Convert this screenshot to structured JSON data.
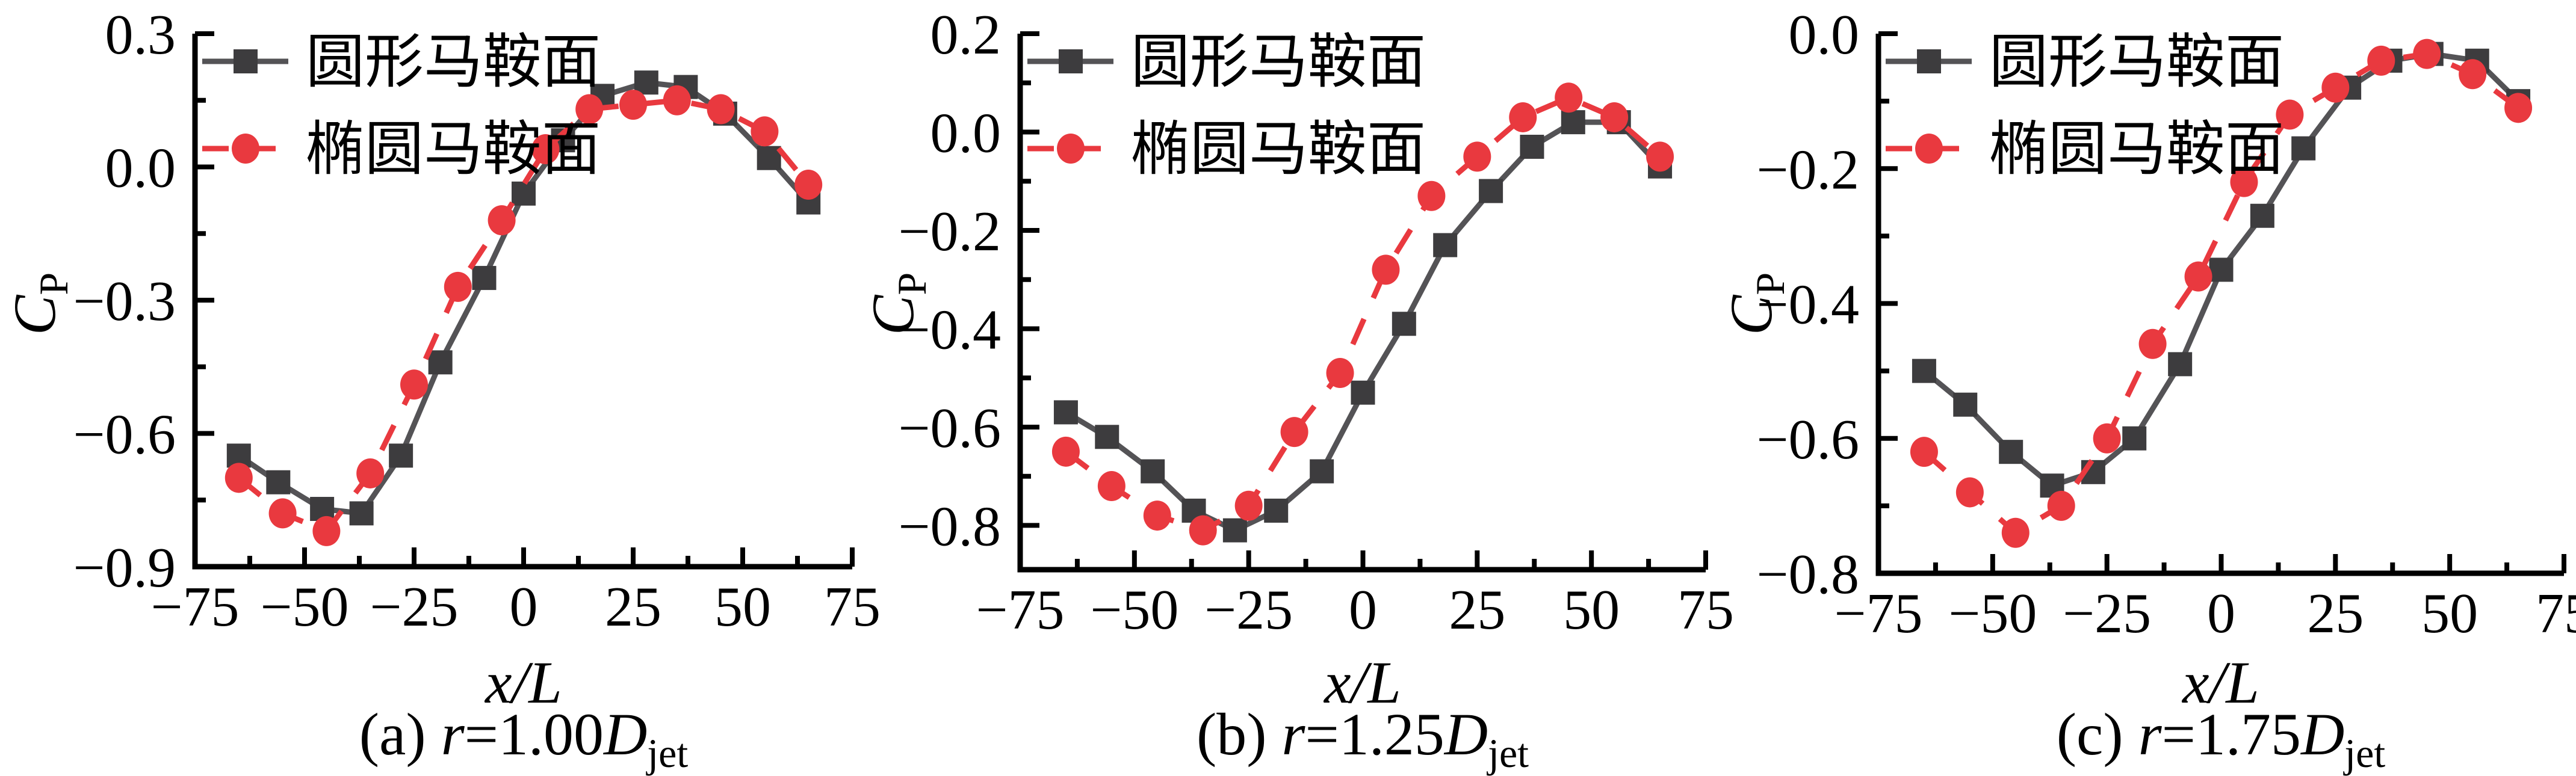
{
  "chart_data": [
    {
      "type": "line",
      "panel": "a",
      "caption": {
        "index": "(a) ",
        "var1": "r",
        "eq": "=1.00",
        "var2": "D",
        "sub": "jet"
      },
      "caption_text": "(a) r=1.00Djet",
      "xlabel": "x/L",
      "ylabel": {
        "main": "C",
        "sub": "P"
      },
      "xlim": [
        -75,
        75
      ],
      "ylim": [
        -0.9,
        0.3
      ],
      "xticks": [
        -75,
        -50,
        -25,
        0,
        25,
        50,
        75
      ],
      "xminor": [
        -62.5,
        -37.5,
        -12.5,
        12.5,
        37.5,
        62.5
      ],
      "yticks": [
        0.3,
        0.0,
        -0.3,
        -0.6,
        -0.9
      ],
      "yminor": [
        0.15,
        -0.15,
        -0.45,
        -0.75
      ],
      "grid": false,
      "legend_position": "top-left",
      "series": [
        {
          "name": "圆形马鞍面",
          "marker": "square",
          "line_style": "solid",
          "marker_color": "#3d3c3e",
          "line_color": "#545356",
          "x": [
            -65,
            -56,
            -46,
            -37,
            -28,
            -19,
            -9,
            0,
            9,
            18,
            28,
            37,
            46,
            56,
            65
          ],
          "y": [
            -0.65,
            -0.71,
            -0.77,
            -0.78,
            -0.65,
            -0.44,
            -0.25,
            -0.06,
            0.06,
            0.16,
            0.19,
            0.18,
            0.12,
            0.02,
            -0.08
          ]
        },
        {
          "name": "椭圆马鞍面",
          "marker": "circle",
          "line_style": "dashed",
          "marker_color": "#e9393f",
          "line_color": "#e9393f",
          "x": [
            -65,
            -55,
            -45,
            -35,
            -25,
            -15,
            -5,
            5,
            15,
            25,
            35,
            45,
            55,
            65
          ],
          "y": [
            -0.7,
            -0.78,
            -0.82,
            -0.69,
            -0.49,
            -0.27,
            -0.12,
            0.04,
            0.13,
            0.14,
            0.15,
            0.13,
            0.08,
            -0.04
          ]
        }
      ]
    },
    {
      "type": "line",
      "panel": "b",
      "caption": {
        "index": "(b) ",
        "var1": "r",
        "eq": "=1.25",
        "var2": "D",
        "sub": "jet"
      },
      "caption_text": "(b) r=1.25Djet",
      "xlabel": "x/L",
      "ylabel": {
        "main": "C",
        "sub": "P"
      },
      "xlim": [
        -75,
        75
      ],
      "ylim": [
        -0.89,
        0.2
      ],
      "xticks": [
        -75,
        -50,
        -25,
        0,
        25,
        50,
        75
      ],
      "xminor": [
        -62.5,
        -37.5,
        -12.5,
        12.5,
        37.5,
        62.5
      ],
      "yticks": [
        0.2,
        0.0,
        -0.2,
        -0.4,
        -0.6,
        -0.8
      ],
      "yminor": [
        0.1,
        -0.1,
        -0.3,
        -0.5,
        -0.7
      ],
      "grid": false,
      "legend_position": "top-left",
      "series": [
        {
          "name": "圆形马鞍面",
          "marker": "square",
          "line_style": "solid",
          "marker_color": "#3d3c3e",
          "line_color": "#545356",
          "x": [
            -65,
            -56,
            -46,
            -37,
            -28,
            -19,
            -9,
            0,
            9,
            18,
            28,
            37,
            46,
            56,
            65
          ],
          "y": [
            -0.57,
            -0.62,
            -0.69,
            -0.77,
            -0.81,
            -0.77,
            -0.69,
            -0.53,
            -0.39,
            -0.23,
            -0.12,
            -0.03,
            0.02,
            0.02,
            -0.07
          ]
        },
        {
          "name": "椭圆马鞍面",
          "marker": "circle",
          "line_style": "dashed",
          "marker_color": "#e9393f",
          "line_color": "#e9393f",
          "x": [
            -65,
            -55,
            -45,
            -35,
            -25,
            -15,
            -5,
            5,
            15,
            25,
            35,
            45,
            55,
            65
          ],
          "y": [
            -0.65,
            -0.72,
            -0.78,
            -0.81,
            -0.76,
            -0.61,
            -0.49,
            -0.28,
            -0.13,
            -0.05,
            0.03,
            0.07,
            0.03,
            -0.05
          ]
        }
      ]
    },
    {
      "type": "line",
      "panel": "c",
      "caption": {
        "index": "(c) ",
        "var1": "r",
        "eq": "=1.75",
        "var2": "D",
        "sub": "jet"
      },
      "caption_text": "(c) r=1.75Djet",
      "xlabel": "x/L",
      "ylabel": {
        "main": "C",
        "sub": "P"
      },
      "xlim": [
        -75,
        75
      ],
      "ylim": [
        -0.8,
        0.0
      ],
      "xticks": [
        -75,
        -50,
        -25,
        0,
        25,
        50,
        75
      ],
      "xminor": [
        -62.5,
        -37.5,
        -12.5,
        12.5,
        37.5,
        62.5
      ],
      "yticks": [
        0.0,
        -0.2,
        -0.4,
        -0.6,
        -0.8
      ],
      "yminor": [
        -0.1,
        -0.3,
        -0.5,
        -0.7
      ],
      "grid": false,
      "legend_position": "top-left",
      "series": [
        {
          "name": "圆形马鞍面",
          "marker": "square",
          "line_style": "solid",
          "marker_color": "#3d3c3e",
          "line_color": "#545356",
          "x": [
            -65,
            -56,
            -46,
            -37,
            -28,
            -19,
            -9,
            0,
            9,
            18,
            28,
            37,
            46,
            56,
            65
          ],
          "y": [
            -0.5,
            -0.55,
            -0.62,
            -0.67,
            -0.65,
            -0.6,
            -0.49,
            -0.35,
            -0.27,
            -0.17,
            -0.08,
            -0.04,
            -0.03,
            -0.04,
            -0.1
          ]
        },
        {
          "name": "椭圆马鞍面",
          "marker": "circle",
          "line_style": "dashed",
          "marker_color": "#e9393f",
          "line_color": "#e9393f",
          "x": [
            -65,
            -55,
            -45,
            -35,
            -25,
            -15,
            -5,
            5,
            15,
            25,
            35,
            45,
            55,
            65
          ],
          "y": [
            -0.62,
            -0.68,
            -0.74,
            -0.7,
            -0.6,
            -0.46,
            -0.36,
            -0.22,
            -0.12,
            -0.08,
            -0.04,
            -0.03,
            -0.06,
            -0.11
          ]
        }
      ]
    }
  ]
}
